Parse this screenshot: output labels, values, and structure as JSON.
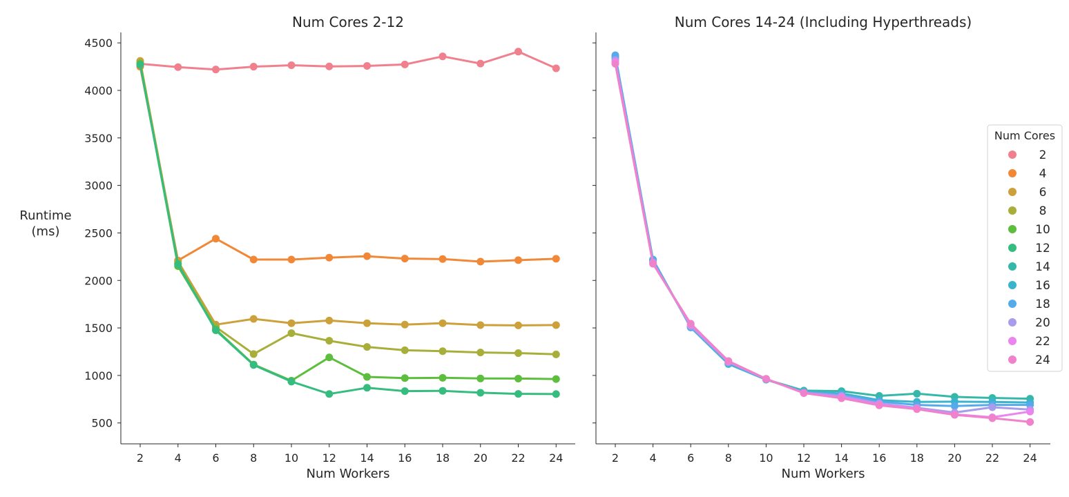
{
  "y_axis_label": [
    "Runtime",
    "(ms)"
  ],
  "legend": {
    "title": "Num Cores",
    "placement": "right of second panel, vertically centered",
    "entries": [
      {
        "label": "2",
        "color": "#f0808d"
      },
      {
        "label": "4",
        "color": "#f08838"
      },
      {
        "label": "6",
        "color": "#cca03a"
      },
      {
        "label": "8",
        "color": "#a8ae3a"
      },
      {
        "label": "10",
        "color": "#5cbe3c"
      },
      {
        "label": "12",
        "color": "#35bc7e"
      },
      {
        "label": "14",
        "color": "#35b8a8"
      },
      {
        "label": "16",
        "color": "#39b4cc"
      },
      {
        "label": "18",
        "color": "#56aaea"
      },
      {
        "label": "20",
        "color": "#a89cec"
      },
      {
        "label": "22",
        "color": "#ea84ee"
      },
      {
        "label": "24",
        "color": "#f082cc"
      }
    ]
  },
  "chart_data": [
    {
      "type": "line",
      "title": "Num Cores 2-12",
      "xlabel": "Num Workers",
      "ylabel": "Runtime\n(ms)",
      "x": [
        2,
        4,
        6,
        8,
        10,
        12,
        14,
        16,
        18,
        20,
        22,
        24
      ],
      "yticks": [
        500,
        1000,
        1500,
        2000,
        2500,
        3000,
        3500,
        4000,
        4500
      ],
      "ylim": [
        280,
        4610
      ],
      "grid": false,
      "markers": true,
      "series": [
        {
          "name": "2",
          "color": "#f0808d",
          "values": [
            4280,
            4245,
            4220,
            4250,
            4265,
            4252,
            4258,
            4273,
            4358,
            4282,
            4408,
            4232
          ]
        },
        {
          "name": "4",
          "color": "#f08838",
          "values": [
            4250,
            2210,
            2440,
            2220,
            2220,
            2240,
            2255,
            2230,
            2225,
            2198,
            2213,
            2228
          ]
        },
        {
          "name": "6",
          "color": "#cca03a",
          "values": [
            4310,
            2200,
            1535,
            1595,
            1550,
            1578,
            1550,
            1535,
            1550,
            1530,
            1527,
            1530
          ]
        },
        {
          "name": "8",
          "color": "#a8ae3a",
          "values": [
            4290,
            2180,
            1510,
            1225,
            1445,
            1365,
            1300,
            1265,
            1255,
            1242,
            1235,
            1222
          ]
        },
        {
          "name": "10",
          "color": "#5cbe3c",
          "values": [
            4280,
            2150,
            1485,
            1115,
            945,
            1190,
            985,
            972,
            975,
            968,
            967,
            962
          ]
        },
        {
          "name": "12",
          "color": "#35bc7e",
          "values": [
            4270,
            2170,
            1475,
            1110,
            935,
            805,
            870,
            835,
            838,
            818,
            806,
            804
          ]
        }
      ]
    },
    {
      "type": "line",
      "title": "Num Cores 14-24 (Including Hyperthreads)",
      "xlabel": "Num Workers",
      "ylabel": "",
      "x": [
        2,
        4,
        6,
        8,
        10,
        12,
        14,
        16,
        18,
        20,
        22,
        24
      ],
      "yticks": [
        500,
        1000,
        1500,
        2000,
        2500,
        3000,
        3500,
        4000,
        4500
      ],
      "ylim": [
        280,
        4610
      ],
      "grid": false,
      "markers": true,
      "series": [
        {
          "name": "14",
          "color": "#35b8a8",
          "values": [
            4340,
            2210,
            1510,
            1125,
            958,
            840,
            835,
            785,
            808,
            775,
            763,
            755
          ]
        },
        {
          "name": "16",
          "color": "#39b4cc",
          "values": [
            4360,
            2220,
            1505,
            1120,
            956,
            828,
            810,
            740,
            722,
            724,
            722,
            715
          ]
        },
        {
          "name": "18",
          "color": "#56aaea",
          "values": [
            4370,
            2215,
            1508,
            1130,
            960,
            825,
            800,
            725,
            690,
            678,
            690,
            690
          ]
        },
        {
          "name": "20",
          "color": "#a89cec",
          "values": [
            4320,
            2190,
            1520,
            1140,
            962,
            818,
            785,
            705,
            660,
            610,
            665,
            640
          ]
        },
        {
          "name": "22",
          "color": "#ea84ee",
          "values": [
            4300,
            2180,
            1535,
            1148,
            963,
            814,
            770,
            695,
            652,
            590,
            560,
            620
          ]
        },
        {
          "name": "24",
          "color": "#f082cc",
          "values": [
            4280,
            2175,
            1545,
            1152,
            965,
            815,
            760,
            685,
            645,
            585,
            550,
            510
          ]
        }
      ]
    }
  ]
}
